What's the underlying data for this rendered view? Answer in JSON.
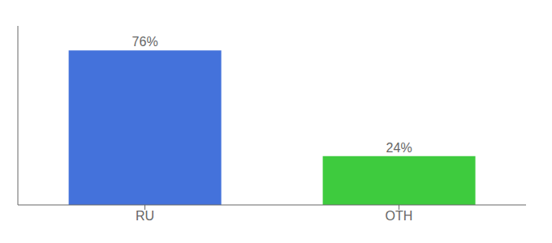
{
  "chart_data": {
    "type": "bar",
    "categories": [
      "RU",
      "OTH"
    ],
    "values": [
      76,
      24
    ],
    "value_labels": [
      "76%",
      "24%"
    ],
    "colors": [
      "#4472db",
      "#3ecb3e"
    ],
    "ylim": [
      0,
      88
    ],
    "data_labels": true,
    "tick_labels": "x",
    "grid": false
  }
}
